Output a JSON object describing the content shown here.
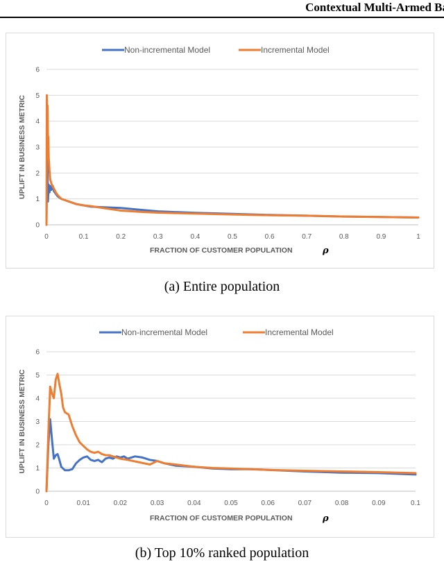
{
  "header": {
    "title": "Contextual Multi-Armed Ba"
  },
  "colors": {
    "non_incremental": "#4472c4",
    "incremental": "#ed7d31",
    "grid": "#d9d9d9",
    "text": "#595959"
  },
  "captions": [
    "(a)  Entire population",
    "(b)  Top 10% ranked population"
  ],
  "chart_data": [
    {
      "type": "line",
      "id": "chart-a",
      "legend": [
        "Non-incremental Model",
        "Incremental Model"
      ],
      "ylabel": "UPLIFT IN BUSINESS METRIC",
      "xlabel": "FRACTION OF CUSTOMER POPULATION",
      "xlabel_symbol": "ρ",
      "xlim": [
        0,
        1
      ],
      "ylim": [
        0,
        6
      ],
      "x_ticks": [
        0,
        0.1,
        0.2,
        0.3,
        0.4,
        0.5,
        0.6,
        0.7,
        0.8,
        0.9,
        1
      ],
      "x_tick_labels": [
        "0",
        "0.1",
        "0.2",
        "0.3",
        "0.4",
        "0.5",
        "0.6",
        "0.7",
        "0.8",
        "0.9",
        "1"
      ],
      "y_ticks": [
        0,
        1,
        2,
        3,
        4,
        5,
        6
      ],
      "y_tick_labels": [
        "0",
        "1",
        "2",
        "3",
        "4",
        "5",
        "6"
      ],
      "grid": true,
      "series": [
        {
          "name": "Non-incremental Model",
          "color": "#4472c4",
          "x": [
            0,
            0.002,
            0.004,
            0.006,
            0.008,
            0.01,
            0.013,
            0.017,
            0.02,
            0.025,
            0.03,
            0.04,
            0.05,
            0.06,
            0.08,
            0.1,
            0.12,
            0.15,
            0.2,
            0.25,
            0.3,
            0.4,
            0.5,
            0.6,
            0.7,
            0.8,
            0.9,
            1.0
          ],
          "y": [
            0,
            2.9,
            0.9,
            1.55,
            1.25,
            1.5,
            1.35,
            1.5,
            1.3,
            1.2,
            1.1,
            1.0,
            0.95,
            0.9,
            0.8,
            0.75,
            0.7,
            0.68,
            0.65,
            0.58,
            0.52,
            0.46,
            0.42,
            0.38,
            0.35,
            0.32,
            0.3,
            0.28
          ]
        },
        {
          "name": "Incremental Model",
          "color": "#ed7d31",
          "x": [
            0,
            0.001,
            0.002,
            0.003,
            0.004,
            0.005,
            0.006,
            0.008,
            0.01,
            0.013,
            0.016,
            0.02,
            0.025,
            0.03,
            0.04,
            0.05,
            0.06,
            0.08,
            0.1,
            0.12,
            0.15,
            0.2,
            0.25,
            0.3,
            0.4,
            0.5,
            0.6,
            0.7,
            0.8,
            0.9,
            1.0
          ],
          "y": [
            0,
            5.0,
            4.3,
            4.6,
            3.3,
            3.4,
            2.6,
            2.1,
            1.75,
            1.6,
            1.5,
            1.4,
            1.25,
            1.15,
            1.0,
            0.95,
            0.9,
            0.8,
            0.75,
            0.72,
            0.65,
            0.55,
            0.5,
            0.47,
            0.43,
            0.4,
            0.37,
            0.35,
            0.32,
            0.3,
            0.28
          ]
        }
      ]
    },
    {
      "type": "line",
      "id": "chart-b",
      "legend": [
        "Non-incremental Model",
        "Incremental Model"
      ],
      "ylabel": "UPLIFT IN BUSINESS METRIC",
      "xlabel": "FRACTION OF CUSTOMER POPULATION",
      "xlabel_symbol": "ρ",
      "xlim": [
        0,
        0.1
      ],
      "ylim": [
        0,
        6
      ],
      "x_ticks": [
        0,
        0.01,
        0.02,
        0.03,
        0.04,
        0.05,
        0.06,
        0.07,
        0.08,
        0.09,
        0.1
      ],
      "x_tick_labels": [
        "0",
        "0.01",
        "0.02",
        "0.03",
        "0.04",
        "0.05",
        "0.06",
        "0.07",
        "0.08",
        "0.09",
        "0.1"
      ],
      "y_ticks": [
        0,
        1,
        2,
        3,
        4,
        5,
        6
      ],
      "y_tick_labels": [
        "0",
        "1",
        "2",
        "3",
        "4",
        "5",
        "6"
      ],
      "grid": true,
      "series": [
        {
          "name": "Non-incremental Model",
          "color": "#4472c4",
          "x": [
            0,
            0.0005,
            0.001,
            0.0015,
            0.002,
            0.0025,
            0.003,
            0.0035,
            0.004,
            0.005,
            0.006,
            0.007,
            0.008,
            0.009,
            0.01,
            0.011,
            0.012,
            0.013,
            0.014,
            0.015,
            0.016,
            0.017,
            0.018,
            0.019,
            0.02,
            0.021,
            0.022,
            0.024,
            0.026,
            0.028,
            0.03,
            0.032,
            0.035,
            0.04,
            0.045,
            0.05,
            0.055,
            0.06,
            0.07,
            0.08,
            0.09,
            0.1
          ],
          "y": [
            0,
            2.0,
            3.1,
            2.2,
            1.4,
            1.55,
            1.6,
            1.35,
            1.05,
            0.9,
            0.9,
            0.95,
            1.2,
            1.35,
            1.45,
            1.5,
            1.35,
            1.3,
            1.35,
            1.25,
            1.4,
            1.45,
            1.4,
            1.5,
            1.45,
            1.5,
            1.4,
            1.5,
            1.45,
            1.35,
            1.3,
            1.2,
            1.1,
            1.05,
            0.98,
            0.95,
            0.95,
            0.92,
            0.85,
            0.8,
            0.78,
            0.72
          ]
        },
        {
          "name": "Incremental Model",
          "color": "#ed7d31",
          "x": [
            0,
            0.0005,
            0.001,
            0.0015,
            0.002,
            0.0025,
            0.003,
            0.0035,
            0.004,
            0.0045,
            0.005,
            0.006,
            0.007,
            0.008,
            0.009,
            0.01,
            0.011,
            0.012,
            0.013,
            0.014,
            0.015,
            0.016,
            0.017,
            0.018,
            0.02,
            0.022,
            0.025,
            0.028,
            0.03,
            0.032,
            0.035,
            0.04,
            0.045,
            0.05,
            0.06,
            0.07,
            0.08,
            0.09,
            0.1
          ],
          "y": [
            0,
            2.5,
            4.5,
            4.2,
            4.0,
            4.8,
            5.05,
            4.6,
            4.2,
            3.6,
            3.4,
            3.3,
            2.8,
            2.4,
            2.1,
            1.95,
            1.8,
            1.7,
            1.65,
            1.7,
            1.6,
            1.55,
            1.55,
            1.5,
            1.4,
            1.35,
            1.25,
            1.15,
            1.3,
            1.2,
            1.15,
            1.05,
            1.0,
            0.98,
            0.92,
            0.88,
            0.85,
            0.82,
            0.78
          ]
        }
      ]
    }
  ]
}
